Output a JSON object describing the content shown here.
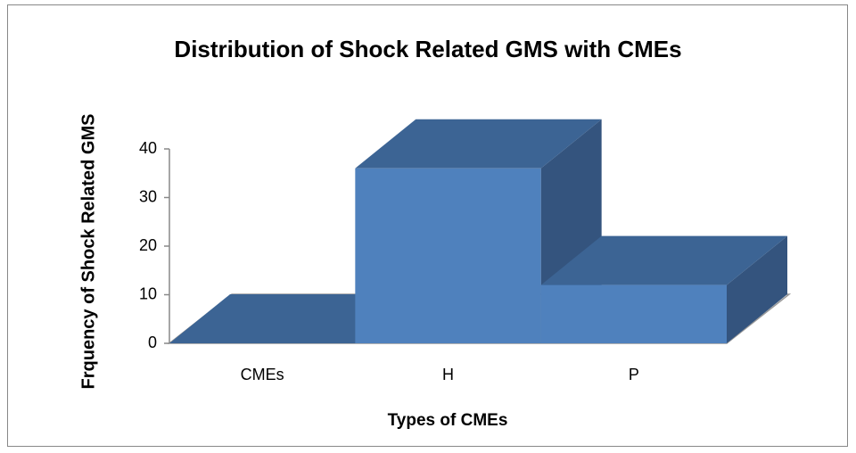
{
  "chart_data": {
    "type": "bar3d",
    "title": "Distribution of Shock Related GMS with CMEs",
    "x_label": "Types of CMEs",
    "y_label": "Frquency of Shock Related GMS",
    "categories": [
      "CMEs",
      "H",
      "P"
    ],
    "values": [
      0,
      36,
      12
    ],
    "colors": {
      "front": "#4f81bd",
      "top": "#3c6494",
      "side": "#34547e"
    },
    "ylim": [
      0,
      40
    ],
    "yticks": [
      0,
      10,
      20,
      30,
      40
    ],
    "grid": false
  }
}
